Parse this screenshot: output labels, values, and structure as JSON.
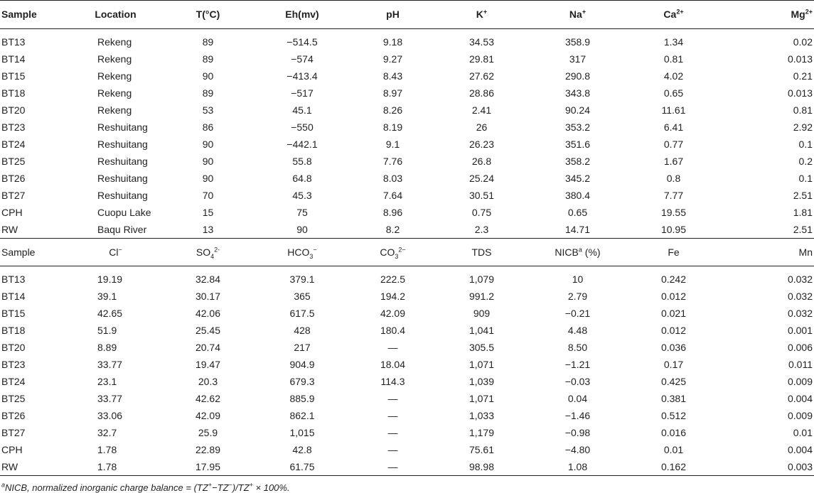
{
  "header1": [
    "Sample",
    "Location",
    "T(°C)",
    "Eh(mv)",
    "pH",
    "K",
    "Na",
    "Ca",
    "Mg"
  ],
  "header1_sup": {
    "K": "+",
    "Na": "+",
    "Ca": "2+",
    "Mg": "2+"
  },
  "rows1": [
    [
      "BT13",
      "Rekeng",
      "89",
      "−514.5",
      "9.18",
      "34.53",
      "358.9",
      "1.34",
      "0.02"
    ],
    [
      "BT14",
      "Rekeng",
      "89",
      "−574",
      "9.27",
      "29.81",
      "317",
      "0.81",
      "0.013"
    ],
    [
      "BT15",
      "Rekeng",
      "90",
      "−413.4",
      "8.43",
      "27.62",
      "290.8",
      "4.02",
      "0.21"
    ],
    [
      "BT18",
      "Rekeng",
      "89",
      "−517",
      "8.97",
      "28.86",
      "343.8",
      "0.65",
      "0.013"
    ],
    [
      "BT20",
      "Rekeng",
      "53",
      "45.1",
      "8.26",
      "2.41",
      "90.24",
      "11.61",
      "0.81"
    ],
    [
      "BT23",
      "Reshuitang",
      "86",
      "−550",
      "8.19",
      "26",
      "353.2",
      "6.41",
      "2.92"
    ],
    [
      "BT24",
      "Reshuitang",
      "90",
      "−442.1",
      "9.1",
      "26.23",
      "351.6",
      "0.77",
      "0.1"
    ],
    [
      "BT25",
      "Reshuitang",
      "90",
      "55.8",
      "7.76",
      "26.8",
      "358.2",
      "1.67",
      "0.2"
    ],
    [
      "BT26",
      "Reshuitang",
      "90",
      "64.8",
      "8.03",
      "25.24",
      "345.2",
      "0.8",
      "0.1"
    ],
    [
      "BT27",
      "Reshuitang",
      "70",
      "45.3",
      "7.64",
      "30.51",
      "380.4",
      "7.77",
      "2.51"
    ],
    [
      "CPH",
      "Cuopu Lake",
      "15",
      "75",
      "8.96",
      "0.75",
      "0.65",
      "19.55",
      "1.81"
    ],
    [
      "RW",
      "Baqu River",
      "13",
      "90",
      "8.2",
      "2.3",
      "14.71",
      "10.95",
      "2.51"
    ]
  ],
  "header2": {
    "sample": "Sample",
    "cl": "Cl",
    "cl_sup": "−",
    "so4": "SO",
    "so4_sub": "4",
    "so4_sup": "2-",
    "hco3": "HCO",
    "hco3_sub": "3",
    "hco3_sup": "−",
    "co3": "CO",
    "co3_sub": "3",
    "co3_sup": "2−",
    "tds": "TDS",
    "nicb": "NICB",
    "nicb_sup": "a",
    "nicb_unit": " (%)",
    "fe": "Fe",
    "mn": "Mn"
  },
  "rows2": [
    [
      "BT13",
      "19.19",
      "32.84",
      "379.1",
      "222.5",
      "1,079",
      "10",
      "0.242",
      "0.032"
    ],
    [
      "BT14",
      "39.1",
      "30.17",
      "365",
      "194.2",
      "991.2",
      "2.79",
      "0.012",
      "0.032"
    ],
    [
      "BT15",
      "42.65",
      "42.06",
      "617.5",
      "42.09",
      "909",
      "−0.21",
      "0.021",
      "0.032"
    ],
    [
      "BT18",
      "51.9",
      "25.45",
      "428",
      "180.4",
      "1,041",
      "4.48",
      "0.012",
      "0.001"
    ],
    [
      "BT20",
      "8.89",
      "20.74",
      "217",
      "—",
      "305.5",
      "8.50",
      "0.036",
      "0.006"
    ],
    [
      "BT23",
      "33.77",
      "19.47",
      "904.9",
      "18.04",
      "1,071",
      "−1.21",
      "0.17",
      "0.011"
    ],
    [
      "BT24",
      "23.1",
      "20.3",
      "679.3",
      "114.3",
      "1,039",
      "−0.03",
      "0.425",
      "0.009"
    ],
    [
      "BT25",
      "33.77",
      "42.62",
      "885.9",
      "—",
      "1,071",
      "0.04",
      "0.381",
      "0.004"
    ],
    [
      "BT26",
      "33.06",
      "42.09",
      "862.1",
      "—",
      "1,033",
      "−1.46",
      "0.512",
      "0.009"
    ],
    [
      "BT27",
      "32.7",
      "25.9",
      "1,015",
      "—",
      "1,179",
      "−0.98",
      "0.016",
      "0.01"
    ],
    [
      "CPH",
      "1.78",
      "22.89",
      "42.8",
      "—",
      "75.61",
      "−4.80",
      "0.01",
      "0.004"
    ],
    [
      "RW",
      "1.78",
      "17.95",
      "61.75",
      "—",
      "98.98",
      "1.08",
      "0.162",
      "0.003"
    ]
  ],
  "footnote": {
    "sup": "a",
    "text": "NICB, normalized inorganic charge balance = (TZ",
    "plus1": "+",
    "mid": "−TZ",
    "minus": "−",
    "end": ")/TZ",
    "plus2": "+",
    "tail": " × 100%."
  }
}
